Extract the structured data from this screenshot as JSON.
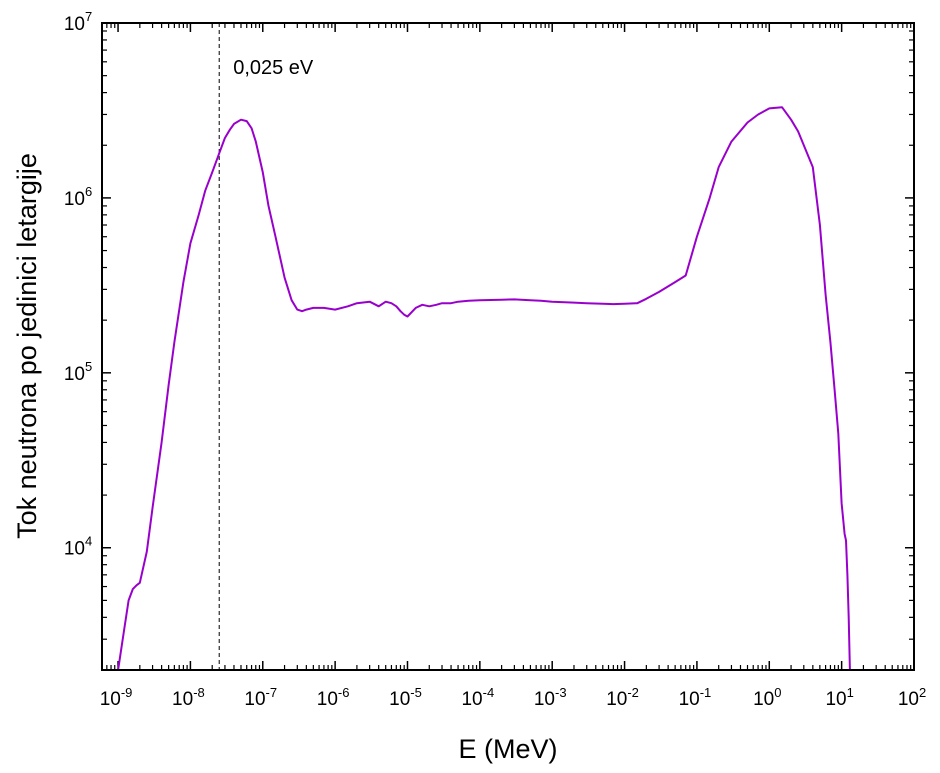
{
  "chart_data": {
    "type": "line",
    "xlabel": "E (MeV)",
    "ylabel": "Tok neutrona po jedinici letargije",
    "xscale": "log",
    "yscale": "log",
    "xlim": [
      6e-10,
      100
    ],
    "ylim": [
      2000,
      10000000
    ],
    "grid": false,
    "legend": "none",
    "line_color": "#9900CC",
    "x_ticks": [
      {
        "value": 1e-09,
        "base": "10",
        "exp": "-9"
      },
      {
        "value": 1e-08,
        "base": "10",
        "exp": "-8"
      },
      {
        "value": 1e-07,
        "base": "10",
        "exp": "-7"
      },
      {
        "value": 1e-06,
        "base": "10",
        "exp": "-6"
      },
      {
        "value": 1e-05,
        "base": "10",
        "exp": "-5"
      },
      {
        "value": 0.0001,
        "base": "10",
        "exp": "-4"
      },
      {
        "value": 0.001,
        "base": "10",
        "exp": "-3"
      },
      {
        "value": 0.01,
        "base": "10",
        "exp": "-2"
      },
      {
        "value": 0.1,
        "base": "10",
        "exp": "-1"
      },
      {
        "value": 1,
        "base": "10",
        "exp": "0"
      },
      {
        "value": 10,
        "base": "10",
        "exp": "1"
      },
      {
        "value": 100,
        "base": "10",
        "exp": "2"
      }
    ],
    "y_ticks": [
      {
        "value": 10000,
        "base": "10",
        "exp": "4"
      },
      {
        "value": 100000,
        "base": "10",
        "exp": "5"
      },
      {
        "value": 1000000,
        "base": "10",
        "exp": "6"
      },
      {
        "value": 10000000,
        "base": "10",
        "exp": "7"
      }
    ],
    "annotations": [
      {
        "type": "vline",
        "x": 2.5e-08,
        "style": "dashed",
        "label": "0,025 eV"
      }
    ],
    "series": [
      {
        "x": [
          1e-09,
          1.2e-09,
          1.4e-09,
          1.6e-09,
          1.8e-09,
          2e-09,
          2.5e-09,
          3e-09,
          4e-09,
          5e-09,
          6e-09,
          8e-09,
          1e-08,
          1.3e-08,
          1.6e-08,
          2e-08,
          2.5e-08,
          3e-08,
          3.5e-08,
          4e-08,
          5e-08,
          6e-08,
          7e-08,
          8e-08,
          1e-07,
          1.2e-07,
          1.5e-07,
          2e-07,
          2.5e-07,
          3e-07,
          3.5e-07,
          4e-07,
          5e-07,
          7e-07,
          1e-06,
          1.5e-06,
          2e-06,
          3e-06,
          4e-06,
          5e-06,
          6e-06,
          7e-06,
          8e-06,
          9e-06,
          1e-05,
          1.3e-05,
          1.6e-05,
          2e-05,
          2.5e-05,
          3e-05,
          4e-05,
          5e-05,
          7e-05,
          0.0001,
          0.0002,
          0.0003,
          0.0005,
          0.0007,
          0.001,
          0.002,
          0.003,
          0.005,
          0.007,
          0.01,
          0.015,
          0.02,
          0.03,
          0.05,
          0.07,
          0.1,
          0.15,
          0.2,
          0.3,
          0.5,
          0.7,
          1,
          1.5,
          2,
          2.5,
          3,
          4,
          5,
          6,
          7,
          8,
          9,
          10,
          11,
          11.5,
          12,
          12.5,
          13
        ],
        "values": [
          2000,
          3300,
          5000,
          5800,
          6100,
          6300,
          9500,
          17000,
          40000,
          85000,
          150000,
          330000,
          550000,
          800000,
          1100000,
          1400000,
          1800000,
          2200000,
          2450000,
          2650000,
          2800000,
          2750000,
          2500000,
          2100000,
          1400000,
          900000,
          600000,
          350000,
          260000,
          230000,
          225000,
          230000,
          235000,
          235000,
          230000,
          240000,
          250000,
          255000,
          240000,
          255000,
          250000,
          240000,
          225000,
          215000,
          210000,
          235000,
          245000,
          240000,
          245000,
          250000,
          250000,
          255000,
          258000,
          260000,
          262000,
          263000,
          260000,
          258000,
          255000,
          252000,
          250000,
          248000,
          247000,
          248000,
          250000,
          265000,
          290000,
          330000,
          360000,
          600000,
          1000000,
          1500000,
          2100000,
          2700000,
          3000000,
          3250000,
          3300000,
          2800000,
          2400000,
          2000000,
          1500000,
          700000,
          280000,
          150000,
          80000,
          45000,
          18000,
          12000,
          11000,
          7000,
          4000,
          2000
        ]
      }
    ]
  }
}
